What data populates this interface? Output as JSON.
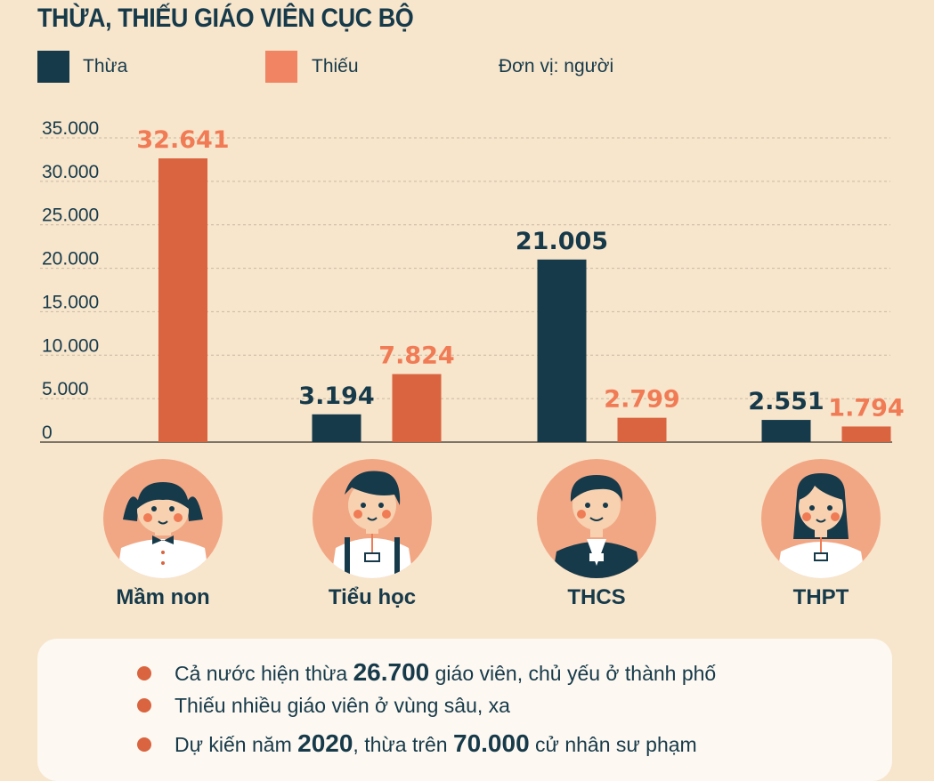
{
  "title": "THỪA, THIẾU GIÁO VIÊN CỤC BỘ",
  "unit_label": "Đơn vị: người",
  "colors": {
    "thua": "#163a4a",
    "thieu": "#d9643f",
    "thieu_label": "#f07b55",
    "legend_thieu": "#f08463",
    "circle": "#f2a784",
    "background": "#f7e5cc"
  },
  "chart_data": {
    "type": "bar",
    "title": "THỪA, THIẾU GIÁO VIÊN CỤC BỘ",
    "categories": [
      "Mầm non",
      "Tiểu học",
      "THCS",
      "THPT"
    ],
    "series": [
      {
        "name": "Thừa",
        "values": [
          null,
          3194,
          21005,
          2551
        ],
        "labels": [
          "",
          "3.194",
          "21.005",
          "2.551"
        ]
      },
      {
        "name": "Thiếu",
        "values": [
          32641,
          7824,
          2799,
          1794
        ],
        "labels": [
          "32.641",
          "7.824",
          "2.799",
          "1.794"
        ]
      }
    ],
    "yticks": [
      "0",
      "5.000",
      "10.000",
      "15.000",
      "20.000",
      "25.000",
      "30.000",
      "35.000"
    ],
    "ylim": [
      0,
      35000
    ],
    "grid": true,
    "legend": "top-left"
  },
  "notes": [
    [
      {
        "t": "Cả nước hiện thừa "
      },
      {
        "t": "26.700",
        "b": true
      },
      {
        "t": " giáo viên, chủ yếu ở thành phố"
      }
    ],
    [
      {
        "t": "Thiếu nhiều giáo viên ở vùng sâu, xa"
      }
    ],
    [
      {
        "t": "Dự kiến năm "
      },
      {
        "t": "2020",
        "b": true
      },
      {
        "t": ",  thừa trên "
      },
      {
        "t": "70.000",
        "b": true
      },
      {
        "t": " cử nhân sư phạm"
      }
    ]
  ]
}
